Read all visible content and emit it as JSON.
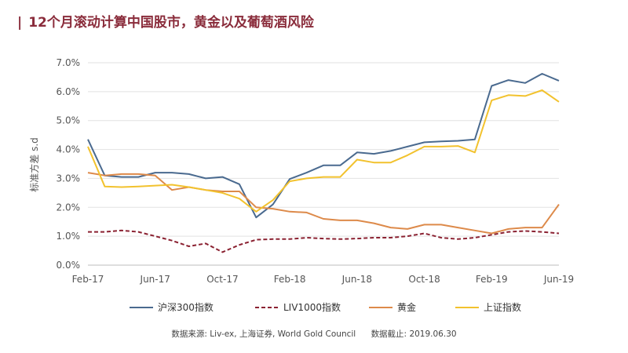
{
  "header": {
    "pipe": "|",
    "title": "12个月滚动计算中国股市，黄金以及葡萄酒风险"
  },
  "chart_data": {
    "type": "line",
    "title": "12个月滚动计算中国股市，黄金以及葡萄酒风险",
    "ylabel": "标准方差 s.d",
    "xlabel": "",
    "ylim": [
      0,
      7
    ],
    "y_ticks": [
      "0.0%",
      "1.0%",
      "2.0%",
      "3.0%",
      "4.0%",
      "5.0%",
      "6.0%",
      "7.0%"
    ],
    "x_ticks": [
      "Feb-17",
      "Jun-17",
      "Oct-17",
      "Feb-18",
      "Jun-18",
      "Oct-18",
      "Feb-19",
      "Jun-19"
    ],
    "x": [
      "Feb-17",
      "Mar-17",
      "Apr-17",
      "May-17",
      "Jun-17",
      "Jul-17",
      "Aug-17",
      "Sep-17",
      "Oct-17",
      "Nov-17",
      "Dec-17",
      "Jan-18",
      "Feb-18",
      "Mar-18",
      "Apr-18",
      "May-18",
      "Jun-18",
      "Jul-18",
      "Aug-18",
      "Sep-18",
      "Oct-18",
      "Nov-18",
      "Dec-18",
      "Jan-19",
      "Feb-19",
      "Mar-19",
      "Apr-19",
      "May-19",
      "Jun-19"
    ],
    "grid": "horizontal",
    "legend_position": "bottom",
    "series": [
      {
        "name": "沪深300指数",
        "color": "#4a6a8f",
        "style": "solid",
        "values": [
          4.35,
          3.1,
          3.05,
          3.05,
          3.2,
          3.2,
          3.15,
          3.0,
          3.05,
          2.8,
          1.65,
          2.1,
          2.98,
          3.2,
          3.45,
          3.45,
          3.9,
          3.85,
          3.95,
          4.1,
          4.25,
          4.28,
          4.3,
          4.35,
          6.2,
          6.4,
          6.3,
          6.62,
          6.38
        ]
      },
      {
        "name": "LIV1000指数",
        "color": "#8b2232",
        "style": "dashed",
        "values": [
          1.15,
          1.15,
          1.2,
          1.15,
          1.0,
          0.85,
          0.65,
          0.75,
          0.45,
          0.7,
          0.88,
          0.9,
          0.9,
          0.95,
          0.92,
          0.9,
          0.92,
          0.95,
          0.95,
          1.0,
          1.1,
          0.95,
          0.9,
          0.95,
          1.05,
          1.15,
          1.18,
          1.15,
          1.1
        ]
      },
      {
        "name": "黄金",
        "color": "#dd8a4a",
        "style": "solid",
        "values": [
          3.2,
          3.1,
          3.15,
          3.15,
          3.1,
          2.6,
          2.7,
          2.6,
          2.55,
          2.55,
          2.0,
          1.95,
          1.85,
          1.82,
          1.6,
          1.55,
          1.55,
          1.45,
          1.3,
          1.25,
          1.4,
          1.4,
          1.3,
          1.2,
          1.1,
          1.25,
          1.3,
          1.3,
          2.1
        ]
      },
      {
        "name": "上证指数",
        "color": "#f2c22e",
        "style": "solid",
        "values": [
          4.1,
          2.72,
          2.7,
          2.72,
          2.75,
          2.78,
          2.7,
          2.6,
          2.5,
          2.3,
          1.85,
          2.25,
          2.9,
          3.0,
          3.05,
          3.05,
          3.65,
          3.55,
          3.55,
          3.8,
          4.1,
          4.1,
          4.12,
          3.9,
          5.7,
          5.88,
          5.85,
          6.05,
          5.65
        ]
      }
    ]
  },
  "footer": {
    "source": "数据来源: Liv-ex, 上海证券, World Gold Council",
    "date": "数据截止: 2019.06.30"
  }
}
